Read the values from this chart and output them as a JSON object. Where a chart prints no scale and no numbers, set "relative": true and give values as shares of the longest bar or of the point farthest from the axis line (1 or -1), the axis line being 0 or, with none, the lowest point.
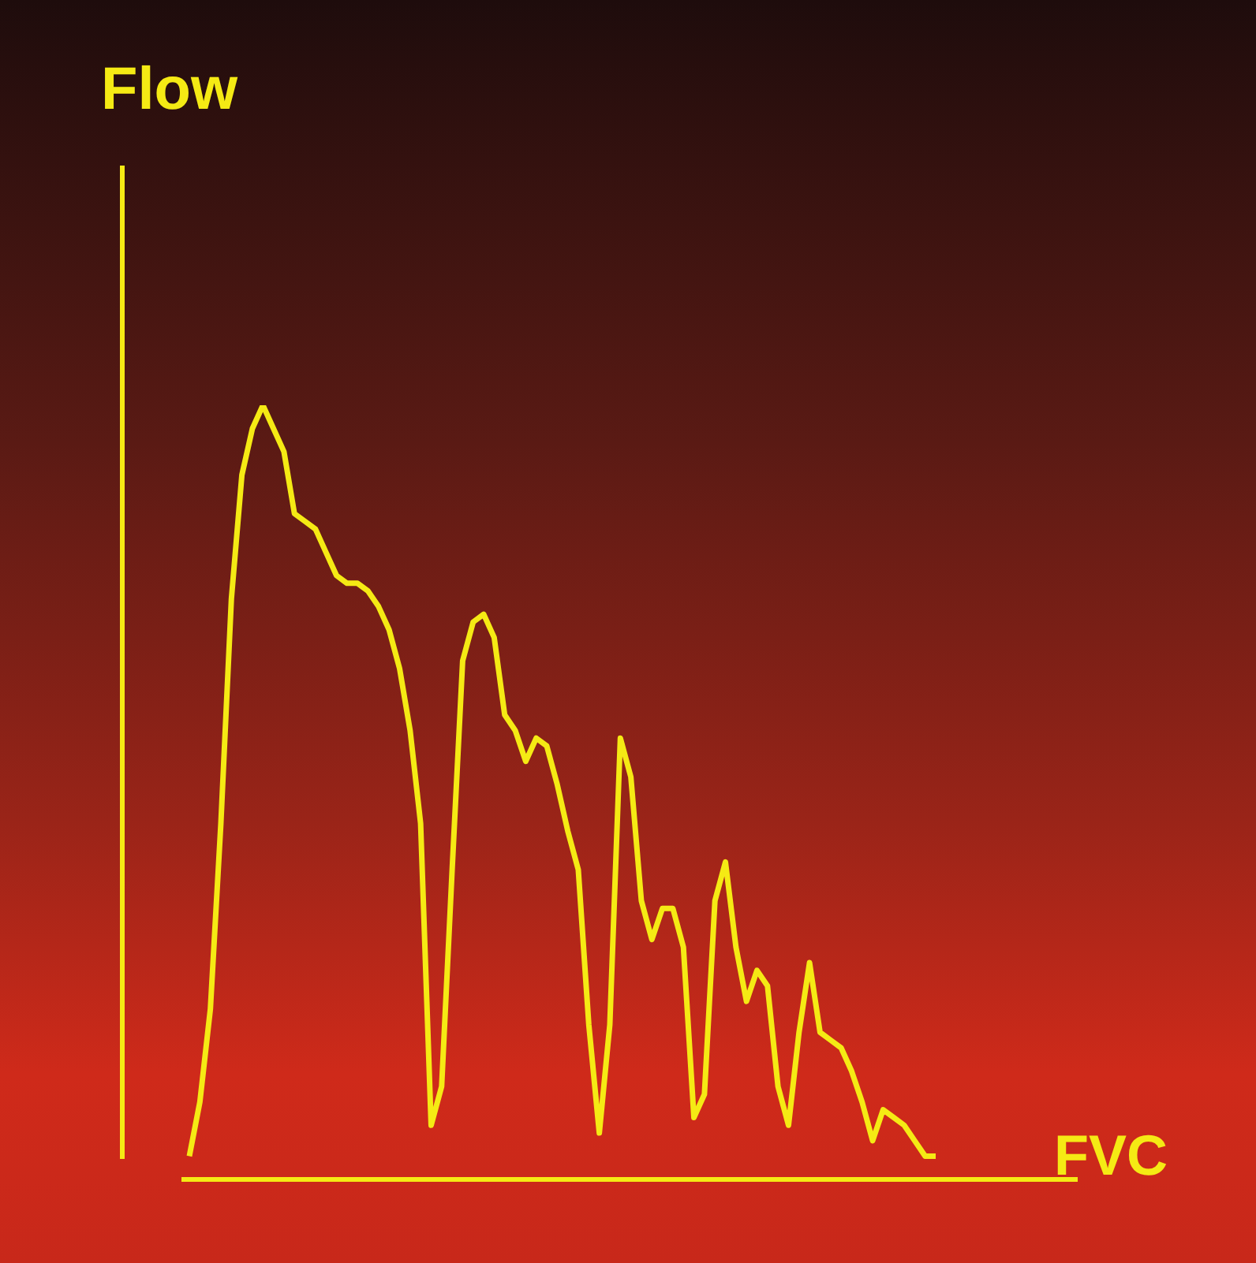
{
  "chart_data": {
    "type": "line",
    "relative": true,
    "xlabel": "FVC",
    "ylabel": "Flow",
    "marker": "none",
    "line_style": "solid",
    "categories": [
      null,
      null,
      null,
      null,
      null,
      null,
      null,
      null,
      null,
      null,
      null,
      null,
      null,
      null,
      null,
      null,
      null,
      null,
      null,
      null,
      null,
      null,
      null,
      null,
      null,
      null,
      null,
      null,
      null,
      null,
      null,
      null,
      null,
      null,
      null,
      null,
      null,
      null,
      null,
      null,
      null,
      null,
      null,
      null,
      null,
      null,
      null,
      null,
      null,
      null,
      null,
      null,
      null,
      null,
      null,
      null,
      null,
      null,
      null,
      null,
      null,
      null,
      null,
      null,
      null,
      null,
      null,
      null,
      null,
      null,
      null,
      null
    ],
    "series": [
      {
        "color": "#f5ea14",
        "values": [
          0.03,
          0.1,
          0.22,
          0.46,
          0.75,
          0.91,
          0.97,
          1.0,
          0.97,
          0.94,
          0.86,
          0.85,
          0.84,
          0.81,
          0.78,
          0.77,
          0.77,
          0.76,
          0.74,
          0.71,
          0.66,
          0.58,
          0.46,
          0.07,
          0.12,
          0.4,
          0.67,
          0.72,
          0.73,
          0.7,
          0.6,
          0.58,
          0.54,
          0.57,
          0.56,
          0.51,
          0.45,
          0.4,
          0.2,
          0.06,
          0.2,
          0.57,
          0.52,
          0.36,
          0.31,
          0.35,
          0.35,
          0.3,
          0.08,
          0.11,
          0.36,
          0.41,
          0.3,
          0.23,
          0.27,
          0.25,
          0.12,
          0.07,
          0.19,
          0.28,
          0.19,
          0.18,
          0.17,
          0.14,
          0.1,
          0.05,
          0.09,
          0.08,
          0.07,
          0.05,
          0.03,
          0.03
        ]
      }
    ]
  }
}
